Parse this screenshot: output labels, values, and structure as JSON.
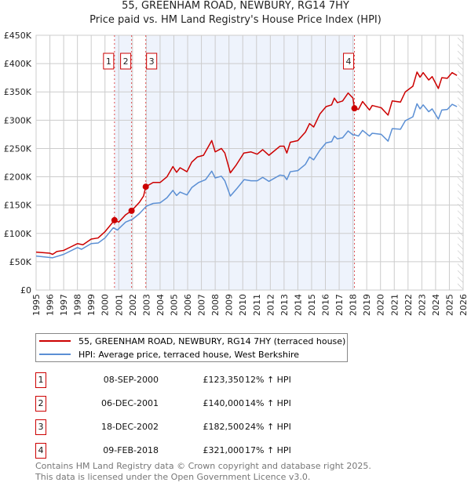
{
  "title": "55, GREENHAM ROAD, NEWBURY, RG14 7HY",
  "subtitle": "Price paid vs. HM Land Registry's House Price Index (HPI)",
  "chart_data": {
    "type": "line",
    "title": "55, GREENHAM ROAD, NEWBURY, RG14 7HY",
    "subtitle": "Price paid vs. HM Land Registry's House Price Index (HPI)",
    "xlim": [
      1995,
      2026
    ],
    "ylim": [
      0,
      450000
    ],
    "x_ticks": [
      "1995",
      "1996",
      "1997",
      "1998",
      "1999",
      "2000",
      "2001",
      "2002",
      "2003",
      "2004",
      "2005",
      "2006",
      "2007",
      "2008",
      "2009",
      "2010",
      "2011",
      "2012",
      "2013",
      "2014",
      "2015",
      "2016",
      "2017",
      "2018",
      "2019",
      "2020",
      "2021",
      "2022",
      "2023",
      "2024",
      "2025",
      "2026"
    ],
    "y_ticks": [
      {
        "v": 0,
        "label": "£0"
      },
      {
        "v": 50000,
        "label": "£50K"
      },
      {
        "v": 100000,
        "label": "£100K"
      },
      {
        "v": 150000,
        "label": "£150K"
      },
      {
        "v": 200000,
        "label": "£200K"
      },
      {
        "v": 250000,
        "label": "£250K"
      },
      {
        "v": 300000,
        "label": "£300K"
      },
      {
        "v": 350000,
        "label": "£350K"
      },
      {
        "v": 400000,
        "label": "£400K"
      },
      {
        "v": 450000,
        "label": "£450K"
      }
    ],
    "grid": true,
    "legend_placement": "below",
    "forecast_from": 2025.6,
    "shaded_ranges": [
      [
        2000.69,
        2001.93
      ],
      [
        2002.96,
        2018.11
      ]
    ],
    "series": [
      {
        "name": "55, GREENHAM ROAD, NEWBURY, RG14 7HY (terraced house)",
        "color": "#cc0000",
        "points": [
          [
            1995,
            67
          ],
          [
            1996,
            65
          ],
          [
            1996.2,
            63
          ],
          [
            1996.5,
            68
          ],
          [
            1997,
            70
          ],
          [
            1997.5,
            76
          ],
          [
            1998,
            82
          ],
          [
            1998.4,
            80
          ],
          [
            1999,
            90
          ],
          [
            1999.5,
            92
          ],
          [
            2000,
            103
          ],
          [
            2000.69,
            123.35
          ],
          [
            2001,
            120
          ],
          [
            2001.5,
            133
          ],
          [
            2001.93,
            140
          ],
          [
            2002.5,
            155
          ],
          [
            2002.8,
            166
          ],
          [
            2002.96,
            182.5
          ],
          [
            2003.5,
            190
          ],
          [
            2004,
            190
          ],
          [
            2004.5,
            200
          ],
          [
            2004.93,
            218
          ],
          [
            2005.2,
            208
          ],
          [
            2005.45,
            216
          ],
          [
            2005.95,
            209
          ],
          [
            2006.3,
            226
          ],
          [
            2006.7,
            235
          ],
          [
            2007.15,
            238
          ],
          [
            2007.75,
            264
          ],
          [
            2008.0,
            244
          ],
          [
            2008.45,
            250
          ],
          [
            2008.7,
            242
          ],
          [
            2009.1,
            207
          ],
          [
            2009.53,
            221
          ],
          [
            2010.08,
            242
          ],
          [
            2010.6,
            244
          ],
          [
            2011.05,
            240
          ],
          [
            2011.45,
            248
          ],
          [
            2011.9,
            238
          ],
          [
            2012.7,
            254
          ],
          [
            2013.0,
            254
          ],
          [
            2013.2,
            242
          ],
          [
            2013.45,
            261
          ],
          [
            2014.0,
            264
          ],
          [
            2014.55,
            279
          ],
          [
            2014.85,
            294
          ],
          [
            2015.15,
            288
          ],
          [
            2015.6,
            311
          ],
          [
            2016.05,
            324
          ],
          [
            2016.45,
            327
          ],
          [
            2016.65,
            339
          ],
          [
            2016.87,
            331
          ],
          [
            2017.25,
            334
          ],
          [
            2017.65,
            348
          ],
          [
            2018.0,
            339
          ],
          [
            2018.11,
            321
          ],
          [
            2018.4,
            319
          ],
          [
            2018.7,
            333
          ],
          [
            2019.2,
            318
          ],
          [
            2019.4,
            326
          ],
          [
            2020.05,
            322
          ],
          [
            2020.55,
            309
          ],
          [
            2020.85,
            334
          ],
          [
            2021.45,
            332
          ],
          [
            2021.8,
            350
          ],
          [
            2022.35,
            360
          ],
          [
            2022.65,
            385
          ],
          [
            2022.87,
            376
          ],
          [
            2023.1,
            384
          ],
          [
            2023.5,
            371
          ],
          [
            2023.75,
            377
          ],
          [
            2024.2,
            356
          ],
          [
            2024.45,
            375
          ],
          [
            2024.85,
            374
          ],
          [
            2025.2,
            384
          ],
          [
            2025.55,
            379
          ]
        ]
      },
      {
        "name": "HPI: Average price, terraced house, West Berkshire",
        "color": "#5b8fd4",
        "points": [
          [
            1995,
            60
          ],
          [
            1996.2,
            57
          ],
          [
            1997,
            63
          ],
          [
            1998,
            75
          ],
          [
            1998.3,
            72
          ],
          [
            1999,
            82
          ],
          [
            1999.5,
            83
          ],
          [
            2000,
            92
          ],
          [
            2000.6,
            110
          ],
          [
            2000.9,
            106
          ],
          [
            2001.5,
            120
          ],
          [
            2002,
            125
          ],
          [
            2002.5,
            135
          ],
          [
            2003,
            148
          ],
          [
            2003.5,
            153
          ],
          [
            2004,
            154
          ],
          [
            2004.5,
            163
          ],
          [
            2004.93,
            176
          ],
          [
            2005.2,
            167
          ],
          [
            2005.45,
            173
          ],
          [
            2005.95,
            168
          ],
          [
            2006.3,
            181
          ],
          [
            2006.8,
            190
          ],
          [
            2007.3,
            195
          ],
          [
            2007.75,
            210
          ],
          [
            2008.0,
            198
          ],
          [
            2008.45,
            201
          ],
          [
            2008.7,
            193
          ],
          [
            2009.1,
            166
          ],
          [
            2009.6,
            180
          ],
          [
            2010.1,
            195
          ],
          [
            2010.6,
            193
          ],
          [
            2011.05,
            193
          ],
          [
            2011.45,
            199
          ],
          [
            2011.9,
            192
          ],
          [
            2012.7,
            203
          ],
          [
            2013.0,
            202
          ],
          [
            2013.2,
            195
          ],
          [
            2013.45,
            209
          ],
          [
            2014.0,
            211
          ],
          [
            2014.55,
            222
          ],
          [
            2014.85,
            235
          ],
          [
            2015.15,
            230
          ],
          [
            2015.6,
            247
          ],
          [
            2016.05,
            260
          ],
          [
            2016.45,
            262
          ],
          [
            2016.65,
            272
          ],
          [
            2016.87,
            267
          ],
          [
            2017.25,
            269
          ],
          [
            2017.65,
            281
          ],
          [
            2018.0,
            274
          ],
          [
            2018.15,
            274
          ],
          [
            2018.4,
            272
          ],
          [
            2018.7,
            282
          ],
          [
            2019.2,
            272
          ],
          [
            2019.4,
            277
          ],
          [
            2020.05,
            275
          ],
          [
            2020.55,
            263
          ],
          [
            2020.85,
            285
          ],
          [
            2021.45,
            284
          ],
          [
            2021.8,
            299
          ],
          [
            2022.35,
            306
          ],
          [
            2022.65,
            329
          ],
          [
            2022.87,
            320
          ],
          [
            2023.1,
            327
          ],
          [
            2023.5,
            315
          ],
          [
            2023.75,
            320
          ],
          [
            2024.2,
            302
          ],
          [
            2024.45,
            318
          ],
          [
            2024.85,
            319
          ],
          [
            2025.2,
            328
          ],
          [
            2025.55,
            324
          ]
        ]
      }
    ],
    "value_unit": "thousands GBP",
    "sales": [
      {
        "n": "1",
        "x": 2000.69,
        "value": 123.35
      },
      {
        "n": "2",
        "x": 2001.93,
        "value": 140
      },
      {
        "n": "3",
        "x": 2002.96,
        "value": 182.5
      },
      {
        "n": "4",
        "x": 2018.11,
        "value": 321
      }
    ]
  },
  "legend": [
    {
      "label": "55, GREENHAM ROAD, NEWBURY, RG14 7HY (terraced house)",
      "color": "#cc0000"
    },
    {
      "label": "HPI: Average price, terraced house, West Berkshire",
      "color": "#5b8fd4"
    }
  ],
  "transactions": [
    {
      "n": "1",
      "date": "08-SEP-2000",
      "price": "£123,350",
      "hpi": "12% ↑ HPI"
    },
    {
      "n": "2",
      "date": "06-DEC-2001",
      "price": "£140,000",
      "hpi": "14% ↑ HPI"
    },
    {
      "n": "3",
      "date": "18-DEC-2002",
      "price": "£182,500",
      "hpi": "24% ↑ HPI"
    },
    {
      "n": "4",
      "date": "09-FEB-2018",
      "price": "£321,000",
      "hpi": "17% ↑ HPI"
    }
  ],
  "footer": {
    "line1": "Contains HM Land Registry data © Crown copyright and database right 2025.",
    "line2": "This data is licensed under the Open Government Licence v3.0."
  }
}
